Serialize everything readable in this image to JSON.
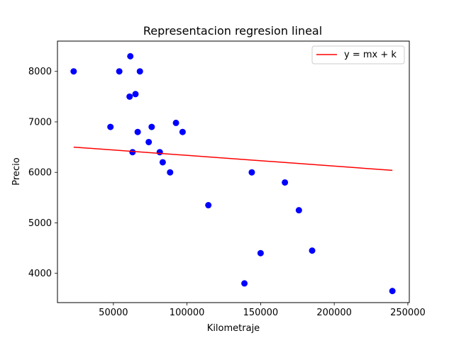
{
  "chart_data": {
    "type": "scatter",
    "title": "Representacion regresion lineal",
    "xlabel": "Kilometraje",
    "ylabel": "Precio",
    "xlim": [
      12000,
      251000
    ],
    "ylim": [
      3420,
      8600
    ],
    "x_ticks": [
      50000,
      100000,
      150000,
      200000,
      250000
    ],
    "x_tick_labels": [
      "50000",
      "100000",
      "150000",
      "200000",
      "250000"
    ],
    "y_ticks": [
      4000,
      5000,
      6000,
      7000,
      8000
    ],
    "y_tick_labels": [
      "4000",
      "5000",
      "6000",
      "7000",
      "8000"
    ],
    "grid": false,
    "legend_position": "top-right",
    "series": [
      {
        "kind": "scatter",
        "color": "#0000ff",
        "points": [
          {
            "x": 23000,
            "y": 8000
          },
          {
            "x": 48000,
            "y": 6900
          },
          {
            "x": 54000,
            "y": 8000
          },
          {
            "x": 61000,
            "y": 7500
          },
          {
            "x": 61500,
            "y": 8300
          },
          {
            "x": 63000,
            "y": 6400
          },
          {
            "x": 65000,
            "y": 7550
          },
          {
            "x": 66500,
            "y": 6800
          },
          {
            "x": 68000,
            "y": 8000
          },
          {
            "x": 74000,
            "y": 6600
          },
          {
            "x": 76000,
            "y": 6900
          },
          {
            "x": 81500,
            "y": 6400
          },
          {
            "x": 83500,
            "y": 6200
          },
          {
            "x": 88500,
            "y": 6000
          },
          {
            "x": 92500,
            "y": 6980
          },
          {
            "x": 97000,
            "y": 6800
          },
          {
            "x": 114500,
            "y": 5350
          },
          {
            "x": 139000,
            "y": 3800
          },
          {
            "x": 144000,
            "y": 6000
          },
          {
            "x": 150000,
            "y": 4400
          },
          {
            "x": 166500,
            "y": 5800
          },
          {
            "x": 176000,
            "y": 5250
          },
          {
            "x": 185000,
            "y": 4450
          },
          {
            "x": 239500,
            "y": 3650
          }
        ]
      },
      {
        "kind": "line",
        "name": "y = mx + k",
        "color": "#ff0000",
        "points": [
          {
            "x": 23000,
            "y": 6500
          },
          {
            "x": 239500,
            "y": 6040
          }
        ]
      }
    ]
  }
}
